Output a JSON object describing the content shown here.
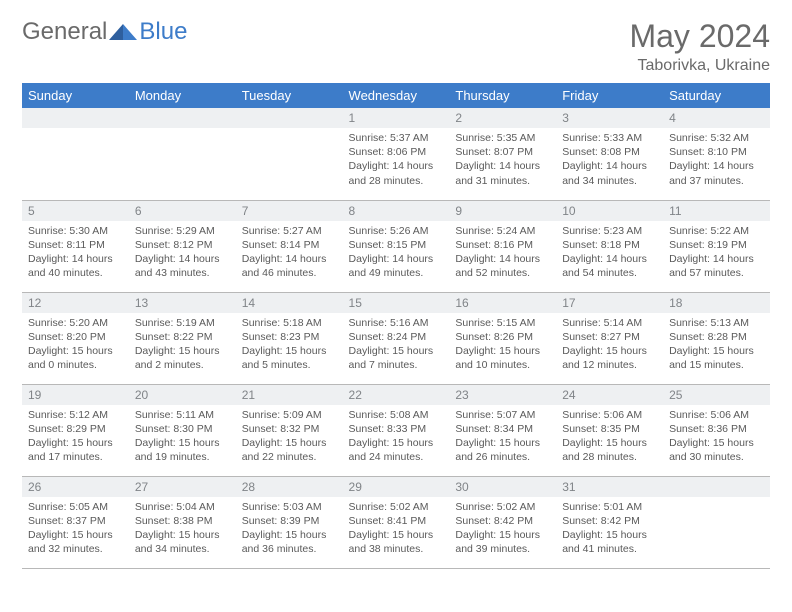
{
  "brand": {
    "part1": "General",
    "part2": "Blue"
  },
  "header": {
    "month_title": "May 2024",
    "location": "Taborivka, Ukraine"
  },
  "colors": {
    "header_bg": "#3d7cc9",
    "header_text": "#ffffff",
    "daynum_bg": "#eef0f2",
    "daynum_text": "#808488",
    "body_text": "#5a5a5a",
    "rule": "#b8b8b8"
  },
  "weekdays": [
    "Sunday",
    "Monday",
    "Tuesday",
    "Wednesday",
    "Thursday",
    "Friday",
    "Saturday"
  ],
  "weeks": [
    [
      {
        "empty": true
      },
      {
        "empty": true
      },
      {
        "empty": true
      },
      {
        "num": "1",
        "sunrise": "Sunrise: 5:37 AM",
        "sunset": "Sunset: 8:06 PM",
        "daylight1": "Daylight: 14 hours",
        "daylight2": "and 28 minutes."
      },
      {
        "num": "2",
        "sunrise": "Sunrise: 5:35 AM",
        "sunset": "Sunset: 8:07 PM",
        "daylight1": "Daylight: 14 hours",
        "daylight2": "and 31 minutes."
      },
      {
        "num": "3",
        "sunrise": "Sunrise: 5:33 AM",
        "sunset": "Sunset: 8:08 PM",
        "daylight1": "Daylight: 14 hours",
        "daylight2": "and 34 minutes."
      },
      {
        "num": "4",
        "sunrise": "Sunrise: 5:32 AM",
        "sunset": "Sunset: 8:10 PM",
        "daylight1": "Daylight: 14 hours",
        "daylight2": "and 37 minutes."
      }
    ],
    [
      {
        "num": "5",
        "sunrise": "Sunrise: 5:30 AM",
        "sunset": "Sunset: 8:11 PM",
        "daylight1": "Daylight: 14 hours",
        "daylight2": "and 40 minutes."
      },
      {
        "num": "6",
        "sunrise": "Sunrise: 5:29 AM",
        "sunset": "Sunset: 8:12 PM",
        "daylight1": "Daylight: 14 hours",
        "daylight2": "and 43 minutes."
      },
      {
        "num": "7",
        "sunrise": "Sunrise: 5:27 AM",
        "sunset": "Sunset: 8:14 PM",
        "daylight1": "Daylight: 14 hours",
        "daylight2": "and 46 minutes."
      },
      {
        "num": "8",
        "sunrise": "Sunrise: 5:26 AM",
        "sunset": "Sunset: 8:15 PM",
        "daylight1": "Daylight: 14 hours",
        "daylight2": "and 49 minutes."
      },
      {
        "num": "9",
        "sunrise": "Sunrise: 5:24 AM",
        "sunset": "Sunset: 8:16 PM",
        "daylight1": "Daylight: 14 hours",
        "daylight2": "and 52 minutes."
      },
      {
        "num": "10",
        "sunrise": "Sunrise: 5:23 AM",
        "sunset": "Sunset: 8:18 PM",
        "daylight1": "Daylight: 14 hours",
        "daylight2": "and 54 minutes."
      },
      {
        "num": "11",
        "sunrise": "Sunrise: 5:22 AM",
        "sunset": "Sunset: 8:19 PM",
        "daylight1": "Daylight: 14 hours",
        "daylight2": "and 57 minutes."
      }
    ],
    [
      {
        "num": "12",
        "sunrise": "Sunrise: 5:20 AM",
        "sunset": "Sunset: 8:20 PM",
        "daylight1": "Daylight: 15 hours",
        "daylight2": "and 0 minutes."
      },
      {
        "num": "13",
        "sunrise": "Sunrise: 5:19 AM",
        "sunset": "Sunset: 8:22 PM",
        "daylight1": "Daylight: 15 hours",
        "daylight2": "and 2 minutes."
      },
      {
        "num": "14",
        "sunrise": "Sunrise: 5:18 AM",
        "sunset": "Sunset: 8:23 PM",
        "daylight1": "Daylight: 15 hours",
        "daylight2": "and 5 minutes."
      },
      {
        "num": "15",
        "sunrise": "Sunrise: 5:16 AM",
        "sunset": "Sunset: 8:24 PM",
        "daylight1": "Daylight: 15 hours",
        "daylight2": "and 7 minutes."
      },
      {
        "num": "16",
        "sunrise": "Sunrise: 5:15 AM",
        "sunset": "Sunset: 8:26 PM",
        "daylight1": "Daylight: 15 hours",
        "daylight2": "and 10 minutes."
      },
      {
        "num": "17",
        "sunrise": "Sunrise: 5:14 AM",
        "sunset": "Sunset: 8:27 PM",
        "daylight1": "Daylight: 15 hours",
        "daylight2": "and 12 minutes."
      },
      {
        "num": "18",
        "sunrise": "Sunrise: 5:13 AM",
        "sunset": "Sunset: 8:28 PM",
        "daylight1": "Daylight: 15 hours",
        "daylight2": "and 15 minutes."
      }
    ],
    [
      {
        "num": "19",
        "sunrise": "Sunrise: 5:12 AM",
        "sunset": "Sunset: 8:29 PM",
        "daylight1": "Daylight: 15 hours",
        "daylight2": "and 17 minutes."
      },
      {
        "num": "20",
        "sunrise": "Sunrise: 5:11 AM",
        "sunset": "Sunset: 8:30 PM",
        "daylight1": "Daylight: 15 hours",
        "daylight2": "and 19 minutes."
      },
      {
        "num": "21",
        "sunrise": "Sunrise: 5:09 AM",
        "sunset": "Sunset: 8:32 PM",
        "daylight1": "Daylight: 15 hours",
        "daylight2": "and 22 minutes."
      },
      {
        "num": "22",
        "sunrise": "Sunrise: 5:08 AM",
        "sunset": "Sunset: 8:33 PM",
        "daylight1": "Daylight: 15 hours",
        "daylight2": "and 24 minutes."
      },
      {
        "num": "23",
        "sunrise": "Sunrise: 5:07 AM",
        "sunset": "Sunset: 8:34 PM",
        "daylight1": "Daylight: 15 hours",
        "daylight2": "and 26 minutes."
      },
      {
        "num": "24",
        "sunrise": "Sunrise: 5:06 AM",
        "sunset": "Sunset: 8:35 PM",
        "daylight1": "Daylight: 15 hours",
        "daylight2": "and 28 minutes."
      },
      {
        "num": "25",
        "sunrise": "Sunrise: 5:06 AM",
        "sunset": "Sunset: 8:36 PM",
        "daylight1": "Daylight: 15 hours",
        "daylight2": "and 30 minutes."
      }
    ],
    [
      {
        "num": "26",
        "sunrise": "Sunrise: 5:05 AM",
        "sunset": "Sunset: 8:37 PM",
        "daylight1": "Daylight: 15 hours",
        "daylight2": "and 32 minutes."
      },
      {
        "num": "27",
        "sunrise": "Sunrise: 5:04 AM",
        "sunset": "Sunset: 8:38 PM",
        "daylight1": "Daylight: 15 hours",
        "daylight2": "and 34 minutes."
      },
      {
        "num": "28",
        "sunrise": "Sunrise: 5:03 AM",
        "sunset": "Sunset: 8:39 PM",
        "daylight1": "Daylight: 15 hours",
        "daylight2": "and 36 minutes."
      },
      {
        "num": "29",
        "sunrise": "Sunrise: 5:02 AM",
        "sunset": "Sunset: 8:41 PM",
        "daylight1": "Daylight: 15 hours",
        "daylight2": "and 38 minutes."
      },
      {
        "num": "30",
        "sunrise": "Sunrise: 5:02 AM",
        "sunset": "Sunset: 8:42 PM",
        "daylight1": "Daylight: 15 hours",
        "daylight2": "and 39 minutes."
      },
      {
        "num": "31",
        "sunrise": "Sunrise: 5:01 AM",
        "sunset": "Sunset: 8:42 PM",
        "daylight1": "Daylight: 15 hours",
        "daylight2": "and 41 minutes."
      },
      {
        "empty": true
      }
    ]
  ]
}
